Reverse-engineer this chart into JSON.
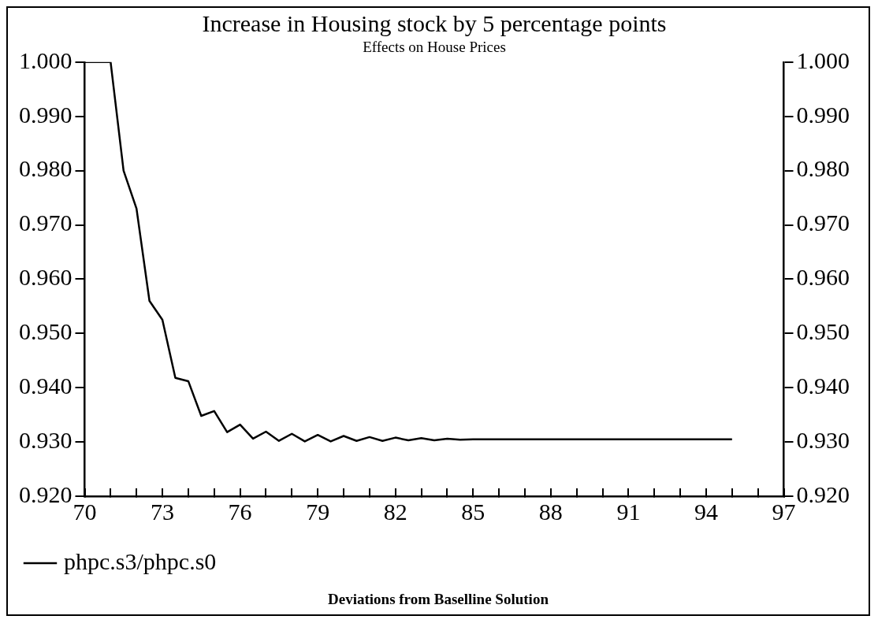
{
  "chart_data": {
    "type": "line",
    "title": "Increase in Housing stock by 5 percentage points",
    "subtitle": "Effects on House Prices",
    "x": [
      70,
      70.5,
      71,
      71.5,
      72,
      72.5,
      73,
      73.5,
      74,
      74.5,
      75,
      75.5,
      76,
      76.5,
      77,
      77.5,
      78,
      78.5,
      79,
      79.5,
      80,
      80.5,
      81,
      81.5,
      82,
      82.5,
      83,
      83.5,
      84,
      84.5,
      85,
      85.5,
      86,
      86.5,
      87,
      87.5,
      88,
      88.5,
      89,
      89.5,
      90,
      90.5,
      91,
      91.5,
      92,
      92.5,
      93,
      93.5,
      94,
      94.5,
      95
    ],
    "series": [
      {
        "name": "phpc.s3/phpc.s0",
        "color": "#000000",
        "values": [
          1.0,
          1.0,
          1.0,
          0.98,
          0.973,
          0.956,
          0.9525,
          0.9418,
          0.9412,
          0.9348,
          0.9357,
          0.9318,
          0.9332,
          0.9306,
          0.9319,
          0.9302,
          0.9315,
          0.9301,
          0.9313,
          0.9301,
          0.9311,
          0.9302,
          0.9309,
          0.9302,
          0.9308,
          0.9303,
          0.9307,
          0.9303,
          0.9306,
          0.9304,
          0.9305,
          0.9305,
          0.9305,
          0.9305,
          0.9305,
          0.9305,
          0.9305,
          0.9305,
          0.9305,
          0.9305,
          0.9305,
          0.9305,
          0.9305,
          0.9305,
          0.9305,
          0.9305,
          0.9305,
          0.9305,
          0.9305,
          0.9305,
          0.9305
        ]
      }
    ],
    "xlim": [
      70,
      97
    ],
    "xticks": [
      70,
      {
        "value": 71,
        "label": null
      },
      {
        "value": 72,
        "label": null
      },
      73,
      {
        "value": 74,
        "label": null
      },
      {
        "value": 75,
        "label": null
      },
      76,
      {
        "value": 77,
        "label": null
      },
      {
        "value": 78,
        "label": null
      },
      79,
      {
        "value": 80,
        "label": null
      },
      {
        "value": 81,
        "label": null
      },
      82,
      {
        "value": 83,
        "label": null
      },
      {
        "value": 84,
        "label": null
      },
      85,
      {
        "value": 86,
        "label": null
      },
      {
        "value": 87,
        "label": null
      },
      88,
      {
        "value": 89,
        "label": null
      },
      {
        "value": 90,
        "label": null
      },
      91,
      {
        "value": 92,
        "label": null
      },
      {
        "value": 93,
        "label": null
      },
      94,
      {
        "value": 95,
        "label": null
      },
      {
        "value": 96,
        "label": null
      },
      97
    ],
    "ylim": [
      0.92,
      1.0
    ],
    "yticks": [
      {
        "value": 0.92,
        "label": "0.920"
      },
      {
        "value": 0.93,
        "label": "0.930"
      },
      {
        "value": 0.94,
        "label": "0.940"
      },
      {
        "value": 0.95,
        "label": "0.950"
      },
      {
        "value": 0.96,
        "label": "0.960"
      },
      {
        "value": 0.97,
        "label": "0.970"
      },
      {
        "value": 0.98,
        "label": "0.980"
      },
      {
        "value": 0.99,
        "label": "0.990"
      },
      {
        "value": 1.0,
        "label": "1.000"
      }
    ],
    "y2lim": [
      0.92,
      1.0
    ],
    "y2ticks": [
      {
        "value": 0.92,
        "label": "0.920"
      },
      {
        "value": 0.93,
        "label": "0.930"
      },
      {
        "value": 0.94,
        "label": "0.940"
      },
      {
        "value": 0.95,
        "label": "0.950"
      },
      {
        "value": 0.96,
        "label": "0.960"
      },
      {
        "value": 0.97,
        "label": "0.970"
      },
      {
        "value": 0.98,
        "label": "0.980"
      },
      {
        "value": 0.99,
        "label": "0.990"
      },
      {
        "value": 1.0,
        "label": "1.000"
      }
    ],
    "grid": false,
    "legend": "bottom left",
    "marker": "none",
    "line_style": "solid",
    "annotations": [
      "Deviations from Baselline Solution"
    ]
  }
}
